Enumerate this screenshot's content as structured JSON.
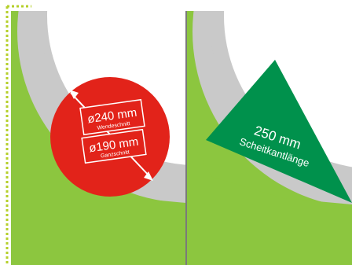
{
  "left_panel": {
    "diameter_1": "ø240 mm",
    "diameter_1_caption": "Wendeschnitt",
    "diameter_2": "ø190 mm",
    "diameter_2_caption": "Ganzschnitt"
  },
  "right_panel": {
    "length_value": "250 mm",
    "length_label": "Scheitkantlänge"
  },
  "colors": {
    "green_bg": "#8cc63f",
    "blade_gray": "#c9c9c9",
    "circle_red": "#e2231a",
    "wedge_green": "#00914c",
    "dotted_border": "#b5cf2a",
    "divider": "#7a7a7a"
  }
}
